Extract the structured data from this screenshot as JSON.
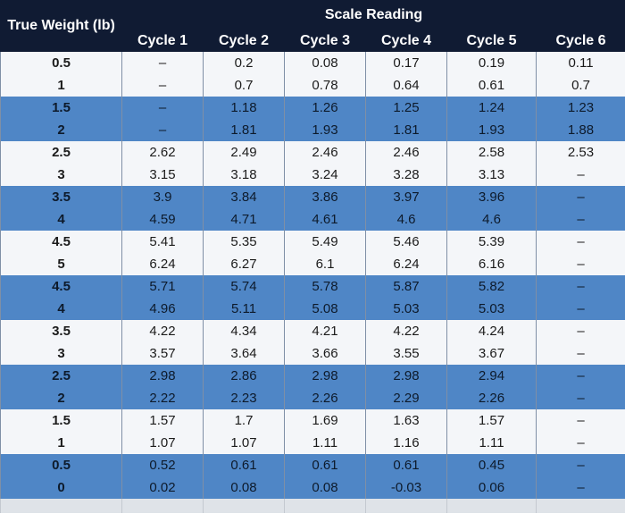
{
  "table": {
    "true_weight_header": "True Weight (lb)",
    "group_header": "Scale Reading",
    "cycle_headers": [
      "Cycle 1",
      "Cycle 2",
      "Cycle 3",
      "Cycle 4",
      "Cycle 5",
      "Cycle 6"
    ],
    "rows": [
      [
        "0.5",
        "–",
        "0.2",
        "0.08",
        "0.17",
        "0.19",
        "0.11"
      ],
      [
        "1",
        "–",
        "0.7",
        "0.78",
        "0.64",
        "0.61",
        "0.7"
      ],
      [
        "1.5",
        "–",
        "1.18",
        "1.26",
        "1.25",
        "1.24",
        "1.23"
      ],
      [
        "2",
        "–",
        "1.81",
        "1.93",
        "1.81",
        "1.93",
        "1.88"
      ],
      [
        "2.5",
        "2.62",
        "2.49",
        "2.46",
        "2.46",
        "2.58",
        "2.53"
      ],
      [
        "3",
        "3.15",
        "3.18",
        "3.24",
        "3.28",
        "3.13",
        "–"
      ],
      [
        "3.5",
        "3.9",
        "3.84",
        "3.86",
        "3.97",
        "3.96",
        "–"
      ],
      [
        "4",
        "4.59",
        "4.71",
        "4.61",
        "4.6",
        "4.6",
        "–"
      ],
      [
        "4.5",
        "5.41",
        "5.35",
        "5.49",
        "5.46",
        "5.39",
        "–"
      ],
      [
        "5",
        "6.24",
        "6.27",
        "6.1",
        "6.24",
        "6.16",
        "–"
      ],
      [
        "4.5",
        "5.71",
        "5.74",
        "5.78",
        "5.87",
        "5.82",
        "–"
      ],
      [
        "4",
        "4.96",
        "5.11",
        "5.08",
        "5.03",
        "5.03",
        "–"
      ],
      [
        "3.5",
        "4.22",
        "4.34",
        "4.21",
        "4.22",
        "4.24",
        "–"
      ],
      [
        "3",
        "3.57",
        "3.64",
        "3.66",
        "3.55",
        "3.67",
        "–"
      ],
      [
        "2.5",
        "2.98",
        "2.86",
        "2.98",
        "2.98",
        "2.94",
        "–"
      ],
      [
        "2",
        "2.22",
        "2.23",
        "2.26",
        "2.29",
        "2.26",
        "–"
      ],
      [
        "1.5",
        "1.57",
        "1.7",
        "1.69",
        "1.63",
        "1.57",
        "–"
      ],
      [
        "1",
        "1.07",
        "1.07",
        "1.11",
        "1.16",
        "1.11",
        "–"
      ],
      [
        "0.5",
        "0.52",
        "0.61",
        "0.61",
        "0.61",
        "0.45",
        "–"
      ],
      [
        "0",
        "0.02",
        "0.08",
        "0.08",
        "-0.03",
        "0.06",
        "–"
      ]
    ]
  },
  "colors": {
    "header_bg": "#101b33",
    "band_white": "#f4f6f9",
    "band_blue": "#4f86c6"
  }
}
